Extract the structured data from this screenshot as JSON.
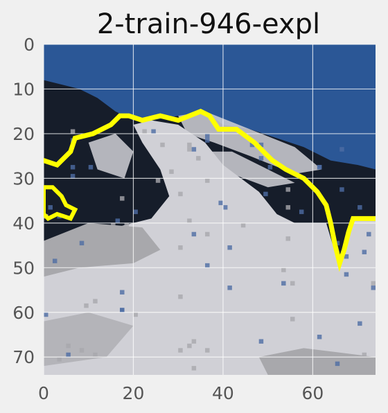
{
  "chart_data": {
    "type": "heatmap",
    "title": "2-train-946-expl",
    "xlabel": "",
    "ylabel": "",
    "xlim": [
      0,
      74
    ],
    "ylim": [
      74,
      0
    ],
    "x_ticks": [
      0,
      20,
      40,
      60
    ],
    "y_ticks": [
      0,
      10,
      20,
      30,
      40,
      50,
      60,
      70
    ],
    "grid": true,
    "colors": {
      "sky": "#2b5796",
      "dark_rock": "#161d2a",
      "snow": "#d0d0d6",
      "shadow_snow": "#a8a8ac",
      "blue_patch": "#4e6da4",
      "outline": "#ffff00",
      "gridline": "#ffffff",
      "background": "#f0f0f0"
    },
    "explanation_outline": [
      [
        0,
        26
      ],
      [
        3,
        27
      ],
      [
        6,
        24
      ],
      [
        7,
        21
      ],
      [
        11,
        20
      ],
      [
        15,
        18
      ],
      [
        17,
        16
      ],
      [
        19,
        16
      ],
      [
        22,
        17
      ],
      [
        26,
        16
      ],
      [
        30,
        17
      ],
      [
        35,
        15
      ],
      [
        37,
        16
      ],
      [
        39,
        19
      ],
      [
        43,
        19
      ],
      [
        47,
        22
      ],
      [
        51,
        26
      ],
      [
        54,
        28
      ],
      [
        58,
        30
      ],
      [
        61,
        33
      ],
      [
        63,
        36
      ],
      [
        64,
        40
      ],
      [
        65,
        45
      ],
      [
        66,
        49
      ],
      [
        67,
        46
      ],
      [
        68,
        42
      ],
      [
        69,
        39
      ],
      [
        74,
        39
      ]
    ],
    "explanation_blob": [
      [
        0,
        32
      ],
      [
        2,
        32
      ],
      [
        4,
        34
      ],
      [
        5,
        36
      ],
      [
        7,
        37
      ],
      [
        6,
        39
      ],
      [
        3,
        38
      ],
      [
        1,
        39
      ],
      [
        0,
        38
      ]
    ]
  }
}
